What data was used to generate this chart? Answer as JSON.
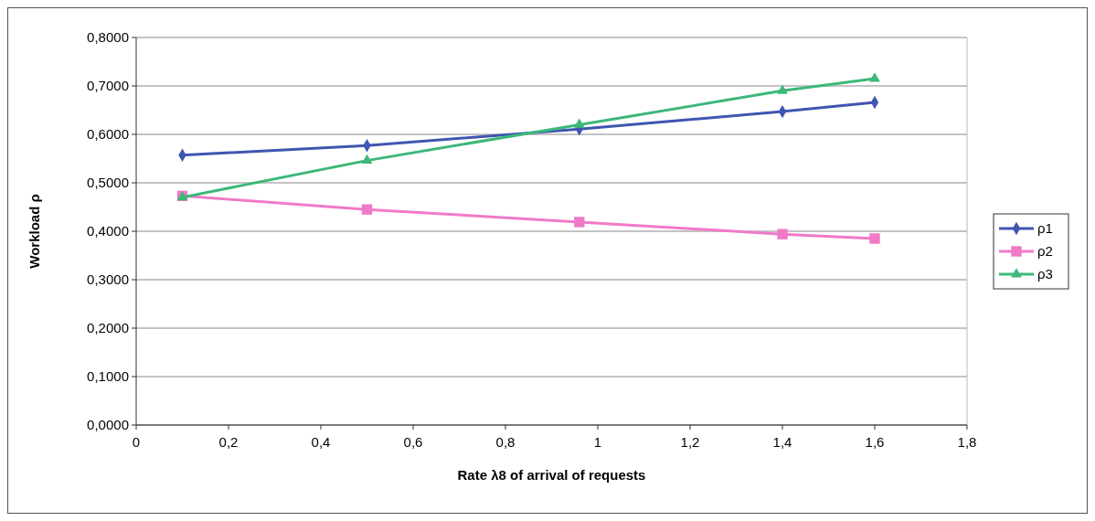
{
  "chart_data": {
    "type": "line",
    "xlabel": "Rate λ8 of arrival of requests",
    "ylabel": "Workload ρ",
    "x": [
      0.1,
      0.5,
      0.96,
      1.4,
      1.6
    ],
    "series": [
      {
        "name": "ρ1",
        "color": "#3f55b0",
        "marker": "diamond",
        "values": [
          0.557,
          0.577,
          0.611,
          0.647,
          0.666
        ]
      },
      {
        "name": "ρ2",
        "color": "#f07ac8",
        "marker": "square",
        "values": [
          0.473,
          0.445,
          0.419,
          0.394,
          0.385
        ]
      },
      {
        "name": "ρ3",
        "color": "#3cb878",
        "marker": "triangle",
        "values": [
          0.47,
          0.546,
          0.62,
          0.69,
          0.715
        ]
      }
    ],
    "xlim": [
      0,
      1.8
    ],
    "xticks": [
      0,
      {
        "value": 0.2,
        "label": "0,2"
      },
      {
        "value": 0.4,
        "label": "0,4"
      },
      {
        "value": 0.6,
        "label": "0,6"
      },
      {
        "value": 0.8,
        "label": "0,8"
      },
      1,
      {
        "value": 1.2,
        "label": "1,2"
      },
      {
        "value": 1.4,
        "label": "1,4"
      },
      {
        "value": 1.6,
        "label": "1,6"
      },
      {
        "value": 1.8,
        "label": "1,8"
      }
    ],
    "ylim": [
      0,
      0.8
    ],
    "yticks": [
      {
        "value": 0,
        "label": "0,0000"
      },
      {
        "value": 0.1,
        "label": "0,1000"
      },
      {
        "value": 0.2,
        "label": "0,2000"
      },
      {
        "value": 0.3,
        "label": "0,3000"
      },
      {
        "value": 0.4,
        "label": "0,4000"
      },
      {
        "value": 0.5,
        "label": "0,5000"
      },
      {
        "value": 0.6,
        "label": "0,6000"
      },
      {
        "value": 0.7,
        "label": "0,7000"
      },
      {
        "value": 0.8,
        "label": "0,8000"
      }
    ],
    "grid": "y",
    "legend": "right",
    "line_style": "solid"
  }
}
